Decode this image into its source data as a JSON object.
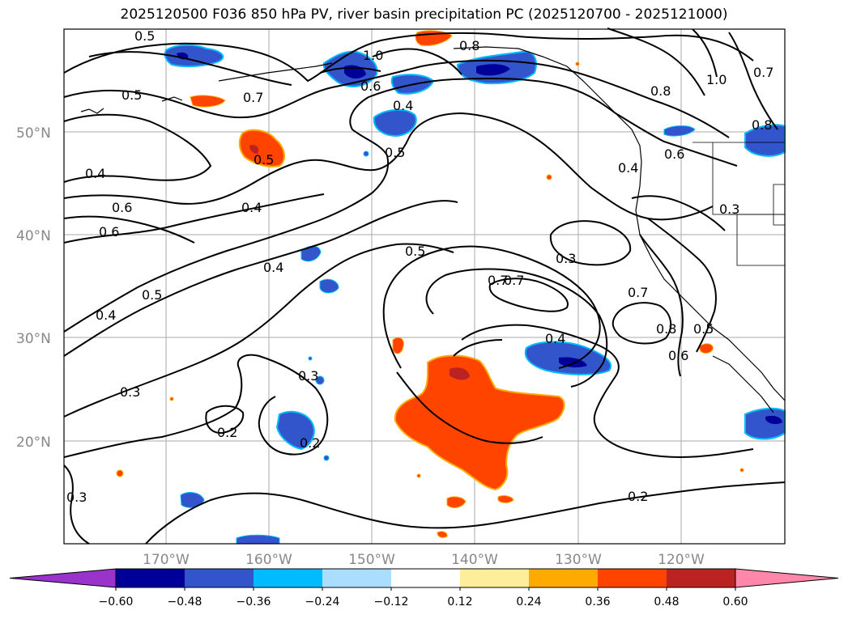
{
  "title": "2025120500 F036 850 hPa PV, river basin precipitation PC (2025120700 - 2025121000)",
  "map": {
    "lat_labels": [
      "50°N",
      "40°N",
      "30°N",
      "20°N"
    ],
    "lon_labels": [
      "170°W",
      "160°W",
      "150°W",
      "140°W",
      "130°W",
      "120°W"
    ],
    "contour_labels": [
      "0.5",
      "0.5",
      "0.4",
      "0.7",
      "0.5",
      "0.6",
      "0.4",
      "0.5",
      "0.8",
      "1.0",
      "0.8",
      "1.0",
      "0.7",
      "0.6",
      "0.4",
      "0.6",
      "0.3",
      "0.4",
      "0.6",
      "0.7",
      "0.4",
      "0.5",
      "0.4",
      "0.5",
      "0.3",
      "0.7",
      "0.7",
      "0.8",
      "0.6",
      "0.5",
      "0.4",
      "0.3",
      "0.2",
      "0.3",
      "0.2",
      "0.3",
      "0.2",
      "0.6",
      "0.8"
    ]
  },
  "colorbar": {
    "ticks": [
      "−0.60",
      "−0.48",
      "−0.36",
      "−0.24",
      "−0.12",
      "0.12",
      "0.24",
      "0.36",
      "0.48",
      "0.60"
    ],
    "colors": [
      "#9933cc",
      "#000099",
      "#3355cc",
      "#00bbff",
      "#aaddff",
      "#ffffff",
      "#ffee99",
      "#ffaa00",
      "#ff4400",
      "#bb2222",
      "#ff88aa"
    ]
  }
}
